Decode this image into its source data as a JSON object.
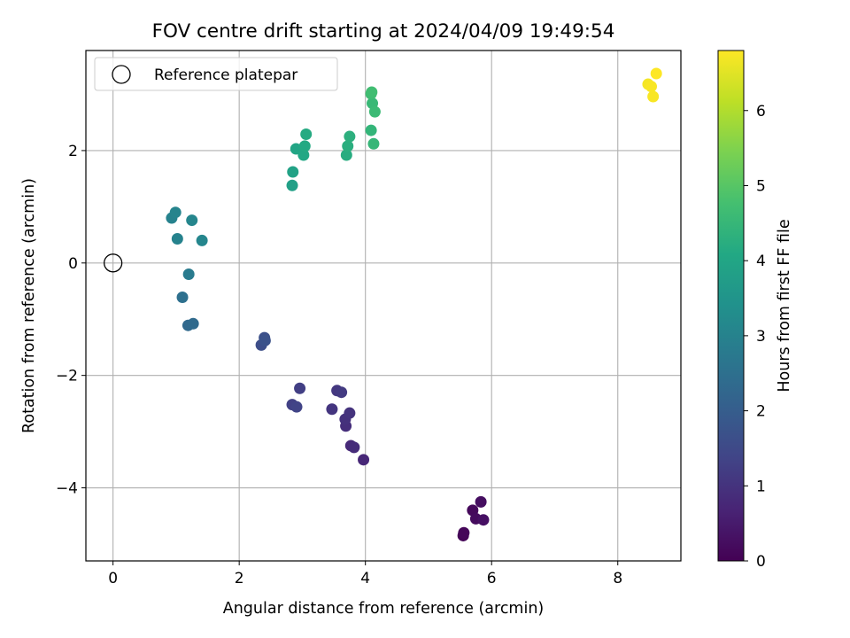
{
  "chart_data": {
    "type": "scatter",
    "title": "FOV centre drift starting at 2024/04/09 19:49:54",
    "xlabel": "Angular distance from reference (arcmin)",
    "ylabel": "Rotation from reference (arcmin)",
    "colorbar_label": "Hours from first FF file",
    "xlim": [
      -0.43,
      9.0
    ],
    "ylim": [
      -5.3,
      3.78
    ],
    "clim": [
      0,
      6.8
    ],
    "xticks": [
      0,
      2,
      4,
      6,
      8
    ],
    "yticks": [
      -4,
      -2,
      0,
      2
    ],
    "colorbar_ticks": [
      0,
      1,
      2,
      3,
      4,
      5,
      6
    ],
    "grid": true,
    "legend": {
      "placement": "top-left",
      "entries": [
        "Reference platepar"
      ]
    },
    "reference_point": {
      "x": 0,
      "y": 0,
      "label": "Reference platepar"
    },
    "colormap": "viridis",
    "points": [
      {
        "x": 5.55,
        "y": -4.85,
        "c": 0.05
      },
      {
        "x": 5.56,
        "y": -4.8,
        "c": 0.1
      },
      {
        "x": 5.7,
        "y": -4.4,
        "c": 0.15
      },
      {
        "x": 5.75,
        "y": -4.55,
        "c": 0.2
      },
      {
        "x": 5.83,
        "y": -4.25,
        "c": 0.25
      },
      {
        "x": 5.87,
        "y": -4.57,
        "c": 0.3
      },
      {
        "x": 3.97,
        "y": -3.5,
        "c": 0.75
      },
      {
        "x": 3.77,
        "y": -3.25,
        "c": 0.8
      },
      {
        "x": 3.82,
        "y": -3.28,
        "c": 0.85
      },
      {
        "x": 3.69,
        "y": -2.9,
        "c": 0.9
      },
      {
        "x": 3.68,
        "y": -2.78,
        "c": 0.95
      },
      {
        "x": 3.75,
        "y": -2.67,
        "c": 1.0
      },
      {
        "x": 3.47,
        "y": -2.6,
        "c": 1.05
      },
      {
        "x": 3.55,
        "y": -2.27,
        "c": 1.1
      },
      {
        "x": 3.62,
        "y": -2.3,
        "c": 1.15
      },
      {
        "x": 2.96,
        "y": -2.23,
        "c": 1.25
      },
      {
        "x": 2.84,
        "y": -2.52,
        "c": 1.3
      },
      {
        "x": 2.91,
        "y": -2.56,
        "c": 1.35
      },
      {
        "x": 2.35,
        "y": -1.46,
        "c": 1.6
      },
      {
        "x": 2.4,
        "y": -1.33,
        "c": 1.65
      },
      {
        "x": 2.41,
        "y": -1.38,
        "c": 1.7
      },
      {
        "x": 1.19,
        "y": -1.11,
        "c": 2.3
      },
      {
        "x": 1.27,
        "y": -1.08,
        "c": 2.35
      },
      {
        "x": 1.1,
        "y": -0.61,
        "c": 2.5
      },
      {
        "x": 1.2,
        "y": -0.2,
        "c": 2.8
      },
      {
        "x": 1.02,
        "y": 0.43,
        "c": 3.0
      },
      {
        "x": 0.93,
        "y": 0.8,
        "c": 3.0
      },
      {
        "x": 0.99,
        "y": 0.9,
        "c": 3.05
      },
      {
        "x": 1.25,
        "y": 0.76,
        "c": 3.1
      },
      {
        "x": 1.41,
        "y": 0.4,
        "c": 3.1
      },
      {
        "x": 2.84,
        "y": 1.38,
        "c": 3.85
      },
      {
        "x": 2.85,
        "y": 1.62,
        "c": 3.9
      },
      {
        "x": 2.9,
        "y": 2.03,
        "c": 4.0
      },
      {
        "x": 3.02,
        "y": 1.92,
        "c": 4.05
      },
      {
        "x": 3.04,
        "y": 2.08,
        "c": 4.1
      },
      {
        "x": 3.06,
        "y": 2.29,
        "c": 4.15
      },
      {
        "x": 3.7,
        "y": 1.92,
        "c": 4.2
      },
      {
        "x": 3.72,
        "y": 2.08,
        "c": 4.25
      },
      {
        "x": 3.75,
        "y": 2.25,
        "c": 4.3
      },
      {
        "x": 4.09,
        "y": 2.36,
        "c": 4.45
      },
      {
        "x": 4.13,
        "y": 2.12,
        "c": 4.5
      },
      {
        "x": 4.11,
        "y": 2.84,
        "c": 4.55
      },
      {
        "x": 4.15,
        "y": 2.69,
        "c": 4.6
      },
      {
        "x": 4.09,
        "y": 3.01,
        "c": 4.65
      },
      {
        "x": 4.1,
        "y": 3.04,
        "c": 4.7
      },
      {
        "x": 8.48,
        "y": 3.18,
        "c": 6.7
      },
      {
        "x": 8.53,
        "y": 3.14,
        "c": 6.75
      },
      {
        "x": 8.56,
        "y": 2.96,
        "c": 6.75
      },
      {
        "x": 8.61,
        "y": 3.37,
        "c": 6.8
      }
    ]
  }
}
